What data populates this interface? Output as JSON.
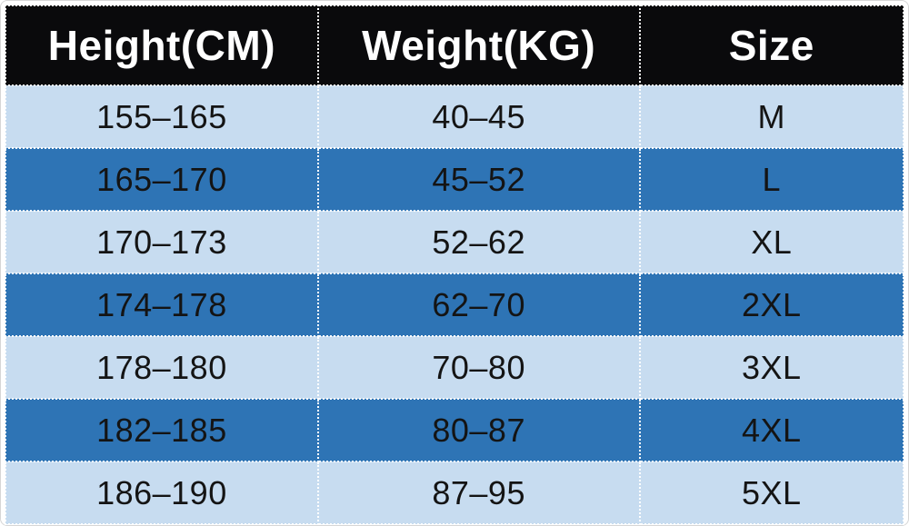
{
  "table": {
    "title": "size-chart",
    "columns": {
      "height": "Height(CM)",
      "weight": "Weight(KG)",
      "size": "Size"
    },
    "rows": [
      {
        "height": "155–165",
        "weight": "40–45",
        "size": "M"
      },
      {
        "height": "165–170",
        "weight": "45–52",
        "size": "L"
      },
      {
        "height": "170–173",
        "weight": "52–62",
        "size": "XL"
      },
      {
        "height": "174–178",
        "weight": "62–70",
        "size": "2XL"
      },
      {
        "height": "178–180",
        "weight": "70–80",
        "size": "3XL"
      },
      {
        "height": "182–185",
        "weight": "80–87",
        "size": "4XL"
      },
      {
        "height": "186–190",
        "weight": "87–95",
        "size": "5XL"
      }
    ]
  },
  "colors": {
    "header_background": "#0a0a0c",
    "header_text": "#ffffff",
    "row_light_background": "#c7dcf0",
    "row_dark_background": "#2e74b5",
    "row_text": "#141414",
    "gridline": "#ffffff"
  }
}
